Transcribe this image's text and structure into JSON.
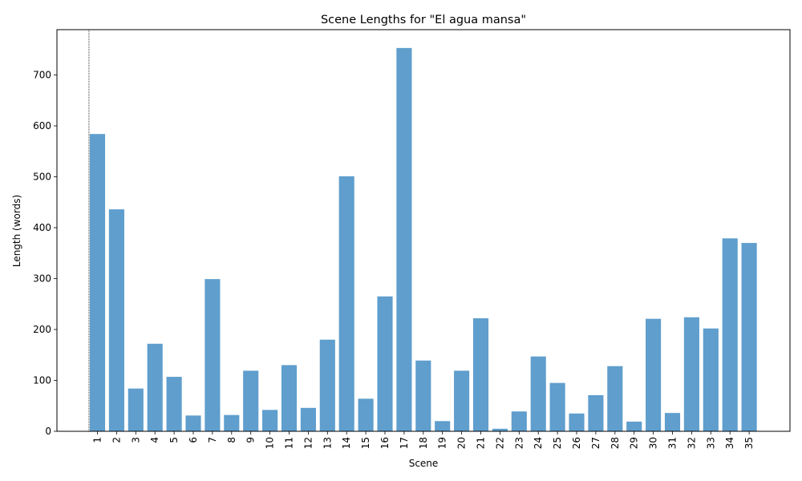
{
  "chart_data": {
    "type": "bar",
    "title": "Scene Lengths for \"El agua mansa\"",
    "xlabel": "Scene",
    "ylabel": "Length (words)",
    "categories": [
      "1",
      "2",
      "3",
      "4",
      "5",
      "6",
      "7",
      "8",
      "9",
      "10",
      "11",
      "12",
      "13",
      "14",
      "15",
      "16",
      "17",
      "18",
      "19",
      "20",
      "21",
      "22",
      "23",
      "24",
      "25",
      "26",
      "27",
      "28",
      "29",
      "30",
      "31",
      "32",
      "33",
      "34",
      "35"
    ],
    "values": [
      584,
      436,
      84,
      172,
      107,
      31,
      299,
      32,
      119,
      42,
      130,
      46,
      180,
      501,
      64,
      265,
      753,
      139,
      20,
      119,
      222,
      5,
      39,
      147,
      95,
      35,
      71,
      128,
      19,
      221,
      36,
      224,
      202,
      379,
      370
    ],
    "ylim": [
      0,
      789
    ],
    "yticks": [
      0,
      100,
      200,
      300,
      400,
      500,
      600,
      700
    ],
    "bar_color": "#5f9ecd",
    "reference_line": {
      "style": "dotted",
      "color": "#000000"
    },
    "grid": false,
    "legend": "none"
  }
}
